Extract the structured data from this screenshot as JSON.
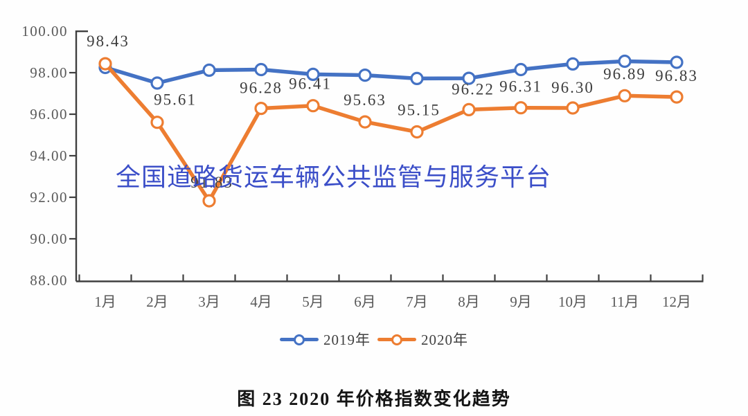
{
  "watermark": {
    "text": "全国道路货运车辆公共监管与服务平台",
    "color": "#3b4ec8"
  },
  "caption": {
    "text": "图 23  2020 年价格指数变化趋势"
  },
  "legend": {
    "items": [
      {
        "label": "2019年",
        "color": "#4472c4"
      },
      {
        "label": "2020年",
        "color": "#ed7d31"
      }
    ]
  },
  "colors": {
    "axis": "#3f3f3f",
    "tick_label": "#595959",
    "data_label": "#3d3d3d",
    "background": "#fefefe",
    "series_2019": "#4472c4",
    "series_2020": "#ed7d31"
  },
  "chart_data": {
    "type": "line",
    "title": "",
    "xlabel": "",
    "ylabel": "",
    "ylim": [
      88,
      100
    ],
    "ytick_step": 2,
    "grid": false,
    "legend_position": "bottom",
    "categories": [
      "1月",
      "2月",
      "3月",
      "4月",
      "5月",
      "6月",
      "7月",
      "8月",
      "9月",
      "10月",
      "11月",
      "12月"
    ],
    "yticks": [
      "100.00",
      "98.00",
      "96.00",
      "94.00",
      "92.00",
      "90.00",
      "88.00"
    ],
    "series": [
      {
        "name": "2019年",
        "color": "#4472c4",
        "marker": "circle-open",
        "values": [
          98.25,
          97.5,
          98.12,
          98.15,
          97.92,
          97.88,
          97.72,
          97.73,
          98.15,
          98.42,
          98.55,
          98.5
        ],
        "data_labels": []
      },
      {
        "name": "2020年",
        "color": "#ed7d31",
        "marker": "circle-open",
        "values": [
          98.43,
          95.61,
          91.83,
          96.28,
          96.41,
          95.63,
          95.15,
          96.22,
          96.31,
          96.3,
          96.89,
          96.83
        ],
        "data_labels": [
          "98.43",
          "95.61",
          "91.83",
          "96.28",
          "96.41",
          "95.63",
          "95.15",
          "96.22",
          "96.31",
          "96.30",
          "96.89",
          "96.83"
        ]
      }
    ]
  }
}
